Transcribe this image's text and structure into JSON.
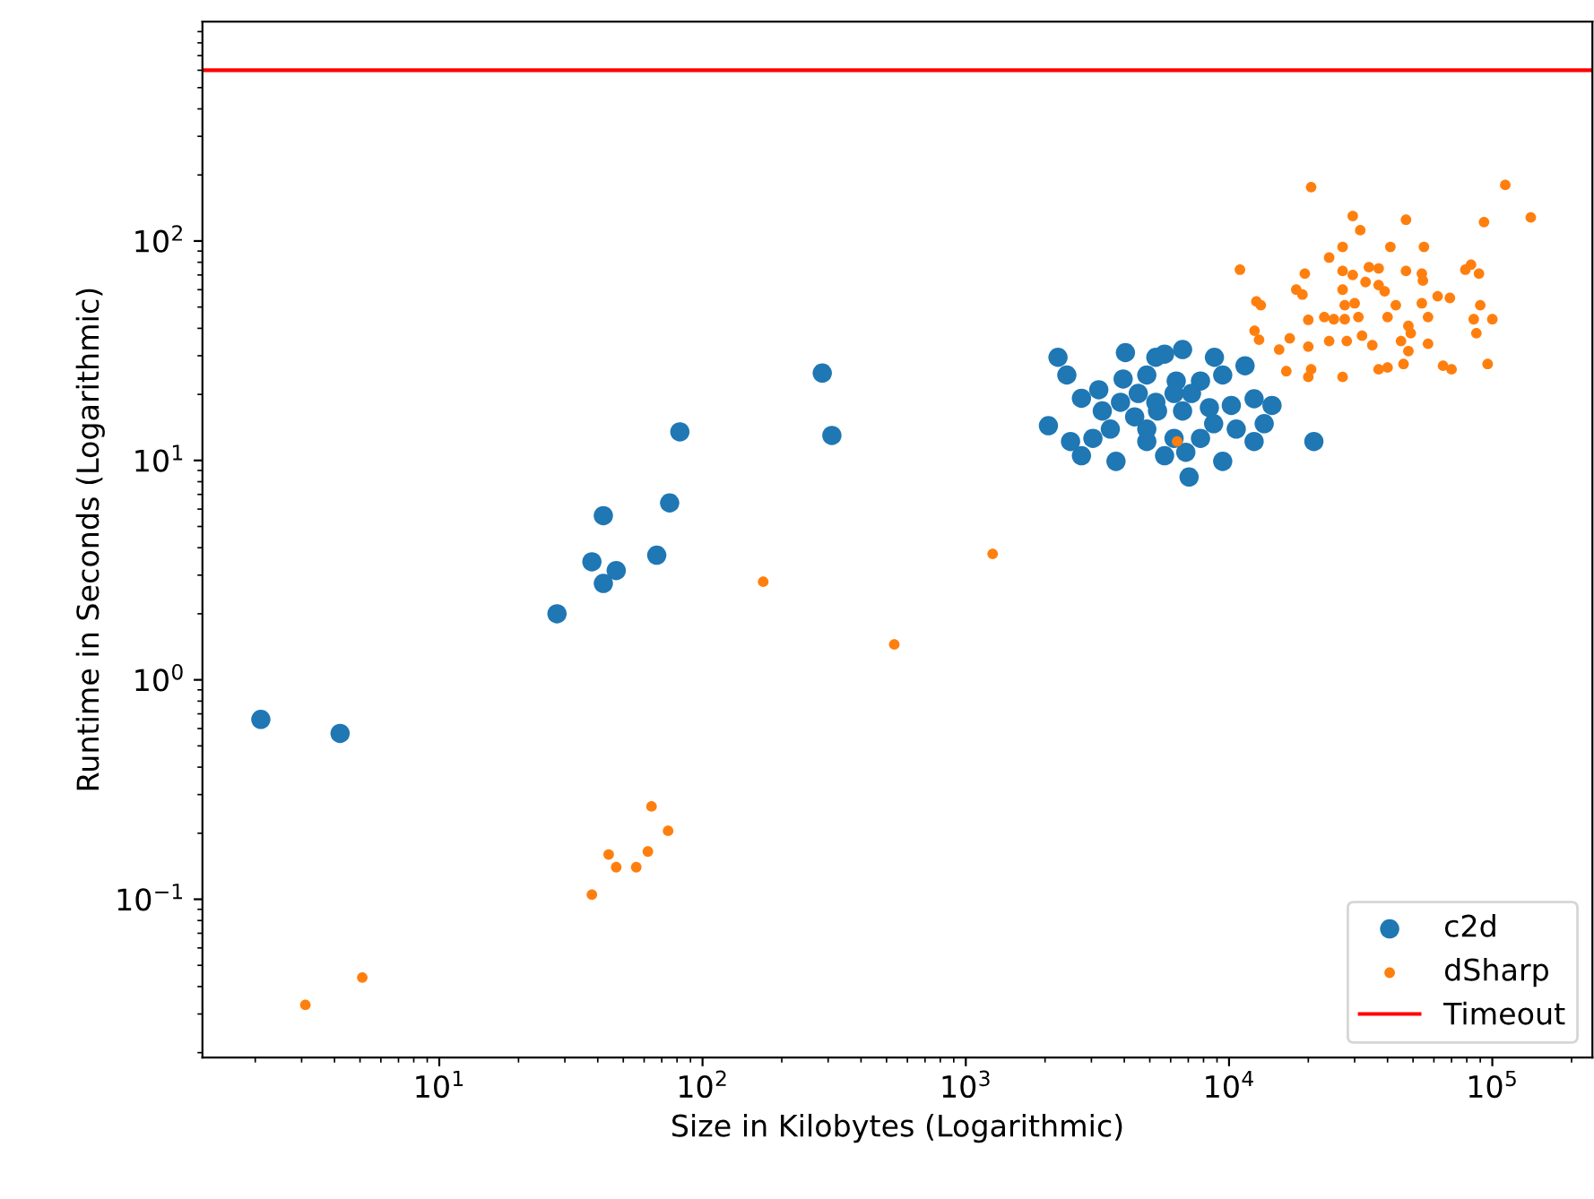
{
  "chart_data": {
    "type": "scatter",
    "xlabel": "Size in Kilobytes (Logarithmic)",
    "ylabel": "Runtime in Seconds (Logarithmic)",
    "log": "xy",
    "grid": false,
    "legend": "bottom right",
    "marker": "circle",
    "xlim": [
      1.26,
      240000
    ],
    "ylim": [
      0.019,
      1000
    ],
    "xticks": [
      {
        "value": 10,
        "label": "10$^{1}$"
      },
      {
        "value": 100,
        "label": "10$^{2}$"
      },
      {
        "value": 1000,
        "label": "10$^{3}$"
      },
      {
        "value": 10000,
        "label": "10$^{4}$"
      },
      {
        "value": 100000,
        "label": "10$^{5}$"
      }
    ],
    "yticks": [
      {
        "value": 0.1,
        "label": "10$^{−1}$"
      },
      {
        "value": 1,
        "label": "10$^{0}$"
      },
      {
        "value": 10,
        "label": "10$^{1}$"
      },
      {
        "value": 100,
        "label": "10$^{2}$"
      }
    ],
    "series": [
      {
        "name": "c2d",
        "color": "#1f77b4",
        "x": [
          2.1,
          4.2,
          28,
          38,
          42,
          42,
          47,
          67,
          75,
          82,
          285,
          310,
          2240,
          2420,
          4040,
          5690,
          6660,
          8800,
          11500,
          2750,
          3200,
          3960,
          4870,
          6300,
          7790,
          9460,
          2060,
          2500,
          2750,
          3540,
          3720,
          4870,
          4380,
          5350,
          6660,
          5690,
          6850,
          7050,
          9460,
          8740,
          10200,
          12450,
          14560,
          12450,
          13600,
          21000,
          3300,
          3870,
          4520,
          5270,
          6180,
          7200,
          4870,
          6180,
          7790,
          3040,
          10650,
          8420,
          5270
        ],
        "values": [
          0.66,
          0.57,
          2.0,
          3.45,
          5.6,
          2.75,
          3.15,
          3.7,
          6.4,
          13.5,
          25,
          13,
          29.5,
          24.5,
          31,
          30.5,
          32,
          29.5,
          27,
          19.2,
          21,
          23.5,
          24.5,
          23,
          23,
          24.5,
          14.4,
          12.2,
          10.5,
          13.9,
          9.9,
          12.2,
          15.8,
          16.8,
          16.8,
          10.5,
          10.9,
          8.4,
          9.9,
          14.7,
          17.8,
          19.1,
          17.8,
          12.2,
          14.7,
          12.2,
          16.8,
          18.4,
          20.2,
          18.4,
          20.2,
          20.2,
          13.9,
          12.6,
          12.6,
          12.6,
          13.9,
          17.4,
          29.5
        ]
      },
      {
        "name": "dSharp",
        "color": "#ff7f0e",
        "x": [
          3.1,
          5.1,
          38,
          44,
          47,
          56,
          62,
          64,
          74,
          170,
          535,
          1265,
          6350,
          20500,
          112000,
          140000,
          93000,
          11000,
          29500,
          47000,
          31500,
          41000,
          55000,
          27000,
          24000,
          79000,
          83000,
          89000,
          19400,
          27000,
          29500,
          34000,
          37000,
          47000,
          54000,
          54500,
          18000,
          19000,
          27000,
          33000,
          37000,
          39000,
          12700,
          13200,
          27500,
          30000,
          43000,
          54000,
          62000,
          69000,
          90000,
          100000,
          85000,
          87000,
          20000,
          23000,
          25000,
          27500,
          31000,
          40000,
          48000,
          57000,
          12500,
          13000,
          17000,
          15500,
          20000,
          24000,
          28000,
          32000,
          35000,
          45000,
          49000,
          57000,
          48000,
          16500,
          20000,
          20500,
          27000,
          37000,
          40000,
          46000,
          65000,
          70000,
          96000
        ],
        "values": [
          0.033,
          0.044,
          0.105,
          0.16,
          0.14,
          0.14,
          0.165,
          0.265,
          0.205,
          2.8,
          1.45,
          3.75,
          12.2,
          176,
          180,
          128,
          122,
          74,
          130,
          125,
          112,
          94,
          94,
          94,
          84,
          74,
          78,
          71,
          71,
          73,
          70,
          76,
          75,
          73,
          71,
          66,
          60,
          57,
          60,
          65,
          63,
          59,
          53,
          51,
          51,
          52,
          51,
          52,
          56,
          55,
          51,
          44,
          44,
          38,
          43.7,
          45,
          44,
          44,
          45,
          45,
          41,
          45,
          39,
          35.5,
          36,
          32,
          33,
          35,
          35,
          37,
          33.5,
          35,
          38,
          34,
          31.5,
          25.5,
          24,
          26,
          24,
          26,
          26.5,
          27.5,
          27,
          26,
          27.5
        ]
      }
    ],
    "ref_lines": [
      {
        "axis": "y",
        "value": 600,
        "label": "Timeout",
        "color": "#ff0000",
        "line_style": "solid"
      }
    ]
  }
}
